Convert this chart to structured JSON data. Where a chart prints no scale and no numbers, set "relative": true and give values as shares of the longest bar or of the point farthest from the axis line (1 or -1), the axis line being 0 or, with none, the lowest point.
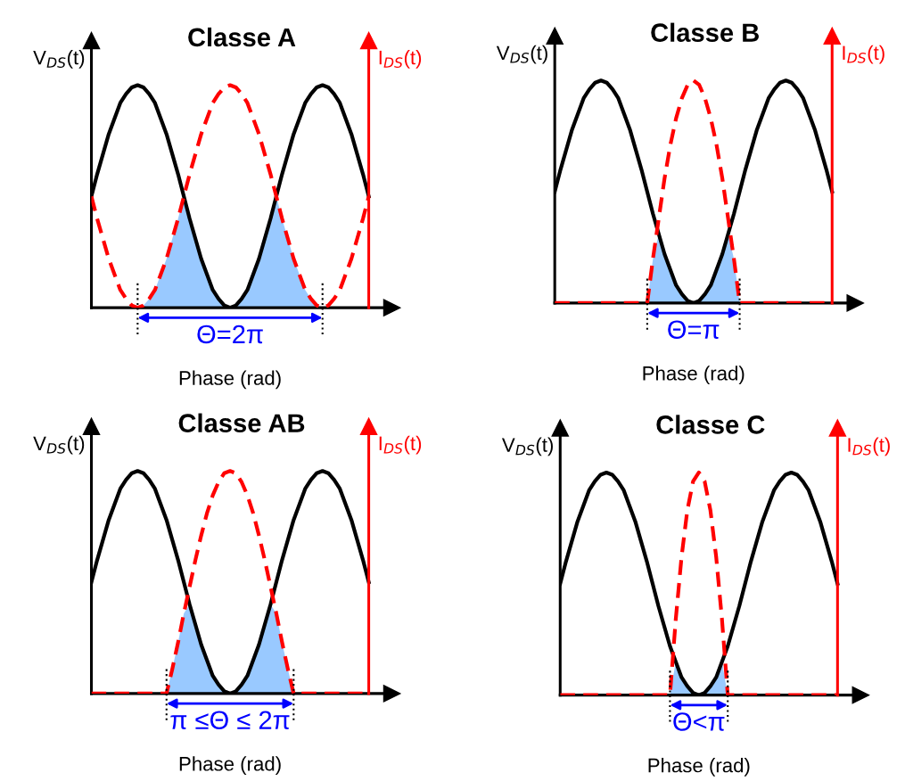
{
  "chart_data": [
    {
      "type": "line",
      "title": "Classe A",
      "ylabel": "V$_{DS}$(t)",
      "y2label": "I$_{DS}$(t)",
      "xlabel": "Phase (rad)",
      "relative": true,
      "categories": [
        null,
        null,
        null,
        null,
        null,
        null,
        null,
        null,
        null,
        null,
        null,
        null,
        null,
        null,
        null,
        null,
        null,
        null,
        null,
        null,
        null,
        null,
        null,
        null,
        null,
        null,
        null,
        null,
        null,
        null,
        null,
        null,
        null,
        null,
        null,
        null,
        null,
        null,
        null,
        null,
        null,
        null,
        null,
        null,
        null,
        null,
        null,
        null,
        null
      ],
      "series": [
        {
          "type": "area",
          "color": "#99c9ff",
          "values": [
            null,
            null,
            null,
            null,
            null,
            null,
            null,
            null,
            0,
            0.01,
            0.04,
            0.08,
            0.15,
            0.22,
            0.31,
            0.4,
            0.5,
            0.4,
            0.31,
            0.22,
            0.15,
            0.08,
            0.04,
            0.01,
            0,
            0.01,
            0.04,
            0.08,
            0.15,
            0.22,
            0.31,
            0.4,
            0.5,
            0.4,
            0.31,
            0.22,
            0.15,
            0.08,
            0.04,
            0.01,
            0,
            null,
            null,
            null,
            null,
            null,
            null,
            null,
            null
          ]
        },
        {
          "color": "#000000",
          "line_style": "solid",
          "values": [
            0.5,
            0.6,
            0.69,
            0.78,
            0.85,
            0.92,
            0.96,
            0.99,
            1,
            0.99,
            0.96,
            0.92,
            0.85,
            0.78,
            0.69,
            0.6,
            0.5,
            0.4,
            0.31,
            0.22,
            0.15,
            0.08,
            0.04,
            0.01,
            0,
            0.01,
            0.04,
            0.08,
            0.15,
            0.22,
            0.31,
            0.4,
            0.5,
            0.6,
            0.69,
            0.78,
            0.85,
            0.92,
            0.96,
            0.99,
            1,
            0.99,
            0.96,
            0.92,
            0.85,
            0.78,
            0.69,
            0.6,
            0.5
          ]
        },
        {
          "color": "#ff0000",
          "line_style": "dashed",
          "values": [
            0.5,
            0.4,
            0.31,
            0.22,
            0.15,
            0.08,
            0.04,
            0.01,
            0,
            0.01,
            0.04,
            0.08,
            0.15,
            0.22,
            0.31,
            0.4,
            0.5,
            0.6,
            0.69,
            0.78,
            0.85,
            0.92,
            0.96,
            0.99,
            1,
            0.99,
            0.96,
            0.92,
            0.85,
            0.78,
            0.69,
            0.6,
            0.5,
            0.4,
            0.31,
            0.22,
            0.15,
            0.08,
            0.04,
            0.01,
            0,
            0.01,
            0.04,
            0.08,
            0.15,
            0.22,
            0.31,
            0.4,
            0.5
          ]
        }
      ],
      "annotations": [
        "Θ=2π"
      ]
    },
    {
      "type": "line",
      "title": "Classe B",
      "ylabel": "V$_{DS}$(t)",
      "y2label": "I$_{DS}$(t)",
      "xlabel": "Phase (rad)",
      "relative": true,
      "categories": [
        null,
        null,
        null,
        null,
        null,
        null,
        null,
        null,
        null,
        null,
        null,
        null,
        null,
        null,
        null,
        null,
        null,
        null,
        null,
        null,
        null,
        null,
        null,
        null,
        null,
        null,
        null,
        null,
        null,
        null,
        null,
        null,
        null,
        null,
        null,
        null,
        null,
        null,
        null,
        null,
        null,
        null,
        null,
        null,
        null,
        null,
        null,
        null,
        null
      ],
      "series": [
        {
          "type": "area",
          "color": "#99c9ff",
          "values": [
            null,
            null,
            null,
            null,
            null,
            null,
            null,
            null,
            null,
            null,
            null,
            null,
            null,
            null,
            null,
            null,
            0,
            0.2,
            0.31,
            0.22,
            0.15,
            0.08,
            0.04,
            0.01,
            0,
            0.01,
            0.04,
            0.08,
            0.15,
            0.22,
            0.31,
            0.2,
            0,
            null,
            null,
            null,
            null,
            null,
            null,
            null,
            null,
            null,
            null,
            null,
            null,
            null,
            null,
            null,
            null
          ]
        },
        {
          "color": "#000000",
          "line_style": "solid",
          "values": [
            0.5,
            0.6,
            0.69,
            0.78,
            0.85,
            0.92,
            0.96,
            0.99,
            1,
            0.99,
            0.96,
            0.92,
            0.85,
            0.78,
            0.69,
            0.6,
            0.5,
            0.4,
            0.31,
            0.22,
            0.15,
            0.08,
            0.04,
            0.01,
            0,
            0.01,
            0.04,
            0.08,
            0.15,
            0.22,
            0.31,
            0.4,
            0.5,
            0.6,
            0.69,
            0.78,
            0.85,
            0.92,
            0.96,
            0.99,
            1,
            0.99,
            0.96,
            0.92,
            0.85,
            0.78,
            0.69,
            0.6,
            0.5
          ]
        },
        {
          "color": "#ff0000",
          "line_style": "dashed",
          "values": [
            0,
            0,
            0,
            0,
            0,
            0,
            0,
            0,
            0,
            0,
            0,
            0,
            0,
            0,
            0,
            0,
            0,
            0.2,
            0.38,
            0.56,
            0.71,
            0.83,
            0.92,
            0.98,
            1,
            0.98,
            0.92,
            0.83,
            0.71,
            0.56,
            0.38,
            0.2,
            0,
            0,
            0,
            0,
            0,
            0,
            0,
            0,
            0,
            0,
            0,
            0,
            0,
            0,
            0,
            0,
            0
          ]
        }
      ],
      "annotations": [
        "Θ=π"
      ]
    },
    {
      "type": "line",
      "title": "Classe AB",
      "ylabel": "V$_{DS}$(t)",
      "y2label": "I$_{DS}$(t)",
      "xlabel": "Phase (rad)",
      "relative": true,
      "categories": [
        null,
        null,
        null,
        null,
        null,
        null,
        null,
        null,
        null,
        null,
        null,
        null,
        null,
        null,
        null,
        null,
        null,
        null,
        null,
        null,
        null,
        null,
        null,
        null,
        null,
        null,
        null,
        null,
        null,
        null,
        null,
        null,
        null,
        null,
        null,
        null,
        null,
        null,
        null,
        null,
        null,
        null,
        null,
        null,
        null,
        null,
        null,
        null,
        null
      ],
      "series": [
        {
          "type": "area",
          "color": "#99c9ff",
          "values": [
            null,
            null,
            null,
            null,
            null,
            null,
            null,
            null,
            null,
            null,
            null,
            null,
            null,
            0,
            0.11,
            0.23,
            0.36,
            0.4,
            0.31,
            0.22,
            0.15,
            0.08,
            0.04,
            0.01,
            0,
            0.01,
            0.04,
            0.08,
            0.15,
            0.22,
            0.31,
            0.4,
            0.36,
            0.23,
            0.11,
            0,
            null,
            null,
            null,
            null,
            null,
            null,
            null,
            null,
            null,
            null,
            null,
            null,
            null
          ]
        },
        {
          "color": "#000000",
          "line_style": "solid",
          "values": [
            0.5,
            0.6,
            0.69,
            0.78,
            0.85,
            0.92,
            0.96,
            0.99,
            1,
            0.99,
            0.96,
            0.92,
            0.85,
            0.78,
            0.69,
            0.6,
            0.5,
            0.4,
            0.31,
            0.22,
            0.15,
            0.08,
            0.04,
            0.01,
            0,
            0.01,
            0.04,
            0.08,
            0.15,
            0.22,
            0.31,
            0.4,
            0.5,
            0.6,
            0.69,
            0.78,
            0.85,
            0.92,
            0.96,
            0.99,
            1,
            0.99,
            0.96,
            0.92,
            0.85,
            0.78,
            0.69,
            0.6,
            0.5
          ]
        },
        {
          "color": "#ff0000",
          "line_style": "dashed",
          "values": [
            0,
            0,
            0,
            0,
            0,
            0,
            0,
            0,
            0,
            0,
            0,
            0,
            0,
            0,
            0.11,
            0.23,
            0.36,
            0.48,
            0.6,
            0.71,
            0.81,
            0.89,
            0.95,
            0.99,
            1,
            0.99,
            0.95,
            0.89,
            0.81,
            0.71,
            0.6,
            0.48,
            0.36,
            0.23,
            0.11,
            0,
            0,
            0,
            0,
            0,
            0,
            0,
            0,
            0,
            0,
            0,
            0,
            0,
            0
          ]
        }
      ],
      "annotations": [
        "π ≤Θ ≤ 2π"
      ]
    },
    {
      "type": "line",
      "title": "Classe C",
      "ylabel": "V$_{DS}$(t)",
      "y2label": "I$_{DS}$(t)",
      "xlabel": "Phase (rad)",
      "relative": true,
      "categories": [
        null,
        null,
        null,
        null,
        null,
        null,
        null,
        null,
        null,
        null,
        null,
        null,
        null,
        null,
        null,
        null,
        null,
        null,
        null,
        null,
        null,
        null,
        null,
        null,
        null,
        null,
        null,
        null,
        null,
        null,
        null,
        null,
        null,
        null,
        null,
        null,
        null,
        null,
        null,
        null,
        null,
        null,
        null,
        null,
        null,
        null,
        null,
        null,
        null
      ],
      "series": [
        {
          "type": "area",
          "color": "#99c9ff",
          "values": [
            null,
            null,
            null,
            null,
            null,
            null,
            null,
            null,
            null,
            null,
            null,
            null,
            null,
            null,
            null,
            null,
            null,
            null,
            null,
            0,
            0.15,
            0.08,
            0.04,
            0.01,
            0,
            0.01,
            0.04,
            0.08,
            0.15,
            0,
            null,
            null,
            null,
            null,
            null,
            null,
            null,
            null,
            null,
            null,
            null,
            null,
            null,
            null,
            null,
            null,
            null,
            null,
            null
          ]
        },
        {
          "color": "#000000",
          "line_style": "solid",
          "values": [
            0.5,
            0.6,
            0.69,
            0.78,
            0.85,
            0.92,
            0.96,
            0.99,
            1,
            0.99,
            0.96,
            0.92,
            0.85,
            0.78,
            0.69,
            0.6,
            0.5,
            0.4,
            0.31,
            0.22,
            0.15,
            0.08,
            0.04,
            0.01,
            0,
            0.01,
            0.04,
            0.08,
            0.15,
            0.22,
            0.31,
            0.4,
            0.5,
            0.6,
            0.69,
            0.78,
            0.85,
            0.92,
            0.96,
            0.99,
            1,
            0.99,
            0.96,
            0.92,
            0.85,
            0.78,
            0.69,
            0.6,
            0.5
          ]
        },
        {
          "color": "#ff0000",
          "line_style": "dashed",
          "values": [
            0,
            0,
            0,
            0,
            0,
            0,
            0,
            0,
            0,
            0,
            0,
            0,
            0,
            0,
            0,
            0,
            0,
            0,
            0,
            0,
            0.34,
            0.62,
            0.83,
            0.96,
            1,
            0.96,
            0.83,
            0.62,
            0.34,
            0,
            0,
            0,
            0,
            0,
            0,
            0,
            0,
            0,
            0,
            0,
            0,
            0,
            0,
            0,
            0,
            0,
            0,
            0,
            0
          ]
        }
      ],
      "annotations": [
        "Θ<π"
      ]
    }
  ]
}
